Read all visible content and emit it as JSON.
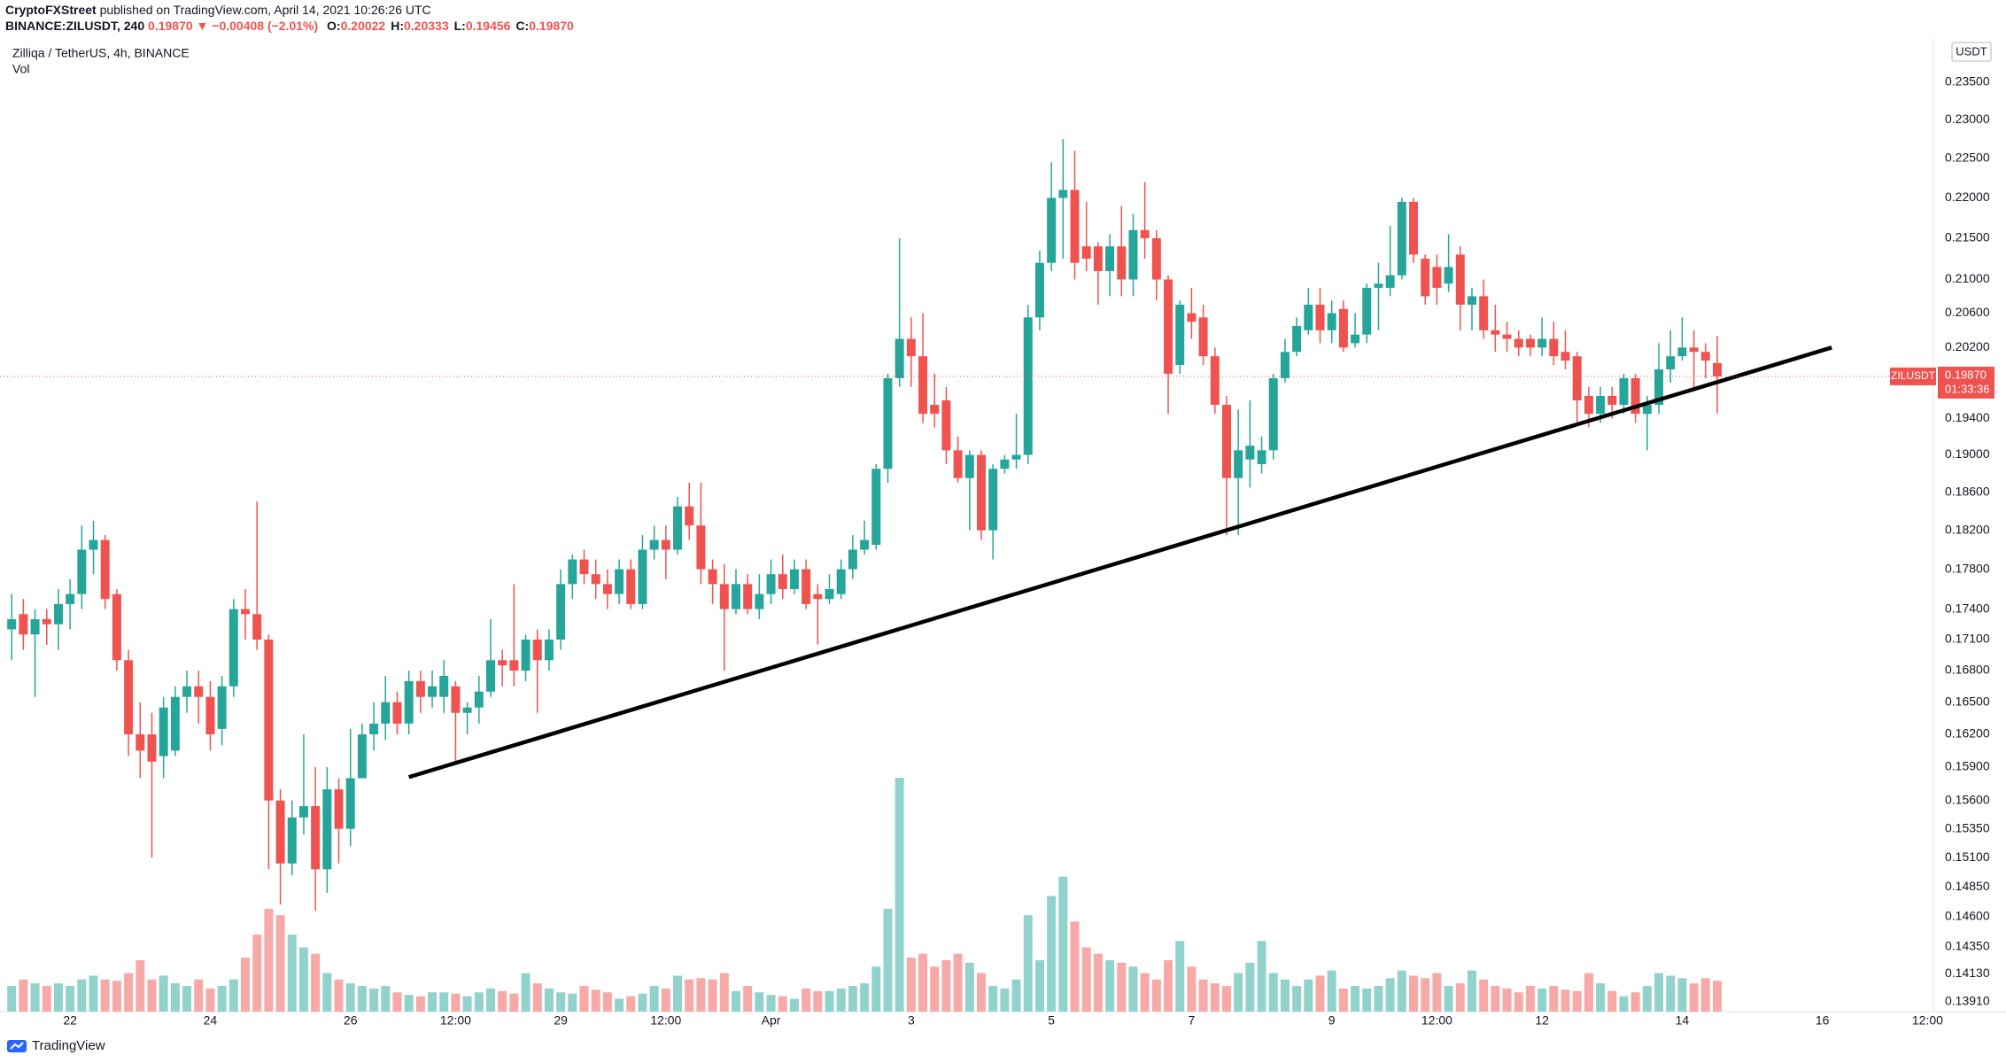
{
  "header": {
    "publisher": "CryptoFXStreet",
    "published": "published on TradingView.com, April 14, 2021 10:26:26 UTC",
    "symbol": "BINANCE:ZILUSDT, 240",
    "last": "0.19870",
    "arrow": "▼",
    "change": "−0.00408 (−2.01%)",
    "ohlc": [
      {
        "key": "O:",
        "value": "0.20022"
      },
      {
        "key": "H:",
        "value": "0.20333"
      },
      {
        "key": "L:",
        "value": "0.19456"
      },
      {
        "key": "C:",
        "value": "0.19870"
      }
    ]
  },
  "chart_data": {
    "type": "candlestick",
    "title": "Zilliqa / TetherUS, 4h, BINANCE",
    "volume_label": "Vol",
    "currency": "USDT",
    "log_scale": true,
    "grid": false,
    "up_color": "#26a69a",
    "down_color": "#ef5350",
    "volume_up_color": "#92d2cc",
    "volume_down_color": "#f7a9a7",
    "open": [
      0.172,
      0.1735,
      0.1715,
      0.173,
      0.1725,
      0.1745,
      0.1755,
      0.18,
      0.181,
      0.1755,
      0.169,
      0.162,
      0.162,
      0.16,
      0.1605,
      0.1655,
      0.1665,
      0.1655,
      0.1625,
      0.1665,
      0.174,
      0.1735,
      0.171,
      0.156,
      0.1505,
      0.1545,
      0.1555,
      0.15,
      0.157,
      0.1535,
      0.158,
      0.162,
      0.163,
      0.165,
      0.163,
      0.167,
      0.1655,
      0.1655,
      0.1665,
      0.164,
      0.1645,
      0.166,
      0.169,
      0.169,
      0.168,
      0.171,
      0.169,
      0.171,
      0.1765,
      0.179,
      0.1775,
      0.1765,
      0.1755,
      0.178,
      0.1745,
      0.18,
      0.181,
      0.18,
      0.1845,
      0.1825,
      0.178,
      0.1765,
      0.174,
      0.1765,
      0.174,
      0.1755,
      0.1775,
      0.176,
      0.178,
      0.1755,
      0.175,
      0.1755,
      0.178,
      0.18,
      0.1805,
      0.1885,
      0.1985,
      0.203,
      0.201,
      0.1955,
      0.196,
      0.1905,
      0.1875,
      0.19,
      0.182,
      0.1885,
      0.1895,
      0.19,
      0.2055,
      0.212,
      0.22,
      0.221,
      0.214,
      0.214,
      0.211,
      0.214,
      0.21,
      0.216,
      0.215,
      0.21,
      0.2,
      0.206,
      0.2055,
      0.201,
      0.1955,
      0.1875,
      0.1895,
      0.189,
      0.1905,
      0.1985,
      0.2015,
      0.204,
      0.207,
      0.204,
      0.2065,
      0.2025,
      0.2035,
      0.209,
      0.209,
      0.2105,
      0.2195,
      0.2125,
      0.2115,
      0.2095,
      0.213,
      0.207,
      0.208,
      0.204,
      0.2035,
      0.203,
      0.203,
      0.202,
      0.203,
      0.2015,
      0.201,
      0.1965,
      0.1945,
      0.1965,
      0.1955,
      0.1985,
      0.1945,
      0.1955,
      0.1995,
      0.201,
      0.202,
      0.2015,
      0.20022
    ],
    "high": [
      0.1755,
      0.175,
      0.174,
      0.174,
      0.176,
      0.177,
      0.1825,
      0.183,
      0.1815,
      0.176,
      0.17,
      0.165,
      0.164,
      0.1655,
      0.1665,
      0.168,
      0.168,
      0.167,
      0.1675,
      0.175,
      0.176,
      0.185,
      0.1715,
      0.157,
      0.156,
      0.162,
      0.159,
      0.159,
      0.158,
      0.1625,
      0.163,
      0.165,
      0.1675,
      0.166,
      0.168,
      0.168,
      0.168,
      0.169,
      0.167,
      0.165,
      0.1675,
      0.173,
      0.17,
      0.1765,
      0.1715,
      0.172,
      0.172,
      0.178,
      0.1795,
      0.18,
      0.179,
      0.178,
      0.179,
      0.179,
      0.1815,
      0.1825,
      0.1825,
      0.1855,
      0.187,
      0.187,
      0.179,
      0.1785,
      0.178,
      0.1775,
      0.1775,
      0.179,
      0.1795,
      0.179,
      0.179,
      0.1765,
      0.1775,
      0.179,
      0.1815,
      0.183,
      0.189,
      0.199,
      0.215,
      0.2055,
      0.206,
      0.199,
      0.1975,
      0.192,
      0.1905,
      0.1905,
      0.189,
      0.19,
      0.1945,
      0.207,
      0.2135,
      0.2245,
      0.2275,
      0.226,
      0.2195,
      0.2145,
      0.2155,
      0.219,
      0.218,
      0.222,
      0.216,
      0.2105,
      0.2075,
      0.209,
      0.207,
      0.202,
      0.1965,
      0.195,
      0.196,
      0.192,
      0.199,
      0.203,
      0.2055,
      0.209,
      0.209,
      0.2075,
      0.2075,
      0.206,
      0.2095,
      0.212,
      0.2165,
      0.22,
      0.22,
      0.213,
      0.213,
      0.2155,
      0.214,
      0.209,
      0.21,
      0.207,
      0.205,
      0.204,
      0.2035,
      0.2055,
      0.205,
      0.204,
      0.2015,
      0.1975,
      0.1975,
      0.1975,
      0.199,
      0.199,
      0.1965,
      0.2025,
      0.204,
      0.2055,
      0.204,
      0.2025,
      0.20333
    ],
    "low": [
      0.169,
      0.17,
      0.1655,
      0.1705,
      0.17,
      0.172,
      0.174,
      0.1775,
      0.174,
      0.168,
      0.16,
      0.158,
      0.151,
      0.158,
      0.16,
      0.164,
      0.163,
      0.1605,
      0.161,
      0.1655,
      0.171,
      0.17,
      0.15,
      0.147,
      0.1495,
      0.153,
      0.1465,
      0.148,
      0.1505,
      0.152,
      0.158,
      0.1605,
      0.1615,
      0.162,
      0.162,
      0.164,
      0.1645,
      0.164,
      0.1595,
      0.162,
      0.163,
      0.1655,
      0.1665,
      0.1665,
      0.167,
      0.164,
      0.168,
      0.17,
      0.175,
      0.1765,
      0.175,
      0.174,
      0.1745,
      0.174,
      0.174,
      0.179,
      0.177,
      0.1795,
      0.181,
      0.1765,
      0.1745,
      0.168,
      0.1735,
      0.1735,
      0.173,
      0.1745,
      0.175,
      0.1755,
      0.174,
      0.1705,
      0.1745,
      0.175,
      0.177,
      0.1795,
      0.18,
      0.187,
      0.1975,
      0.1975,
      0.1935,
      0.193,
      0.189,
      0.187,
      0.182,
      0.181,
      0.179,
      0.188,
      0.1885,
      0.189,
      0.204,
      0.211,
      0.2125,
      0.21,
      0.211,
      0.207,
      0.208,
      0.208,
      0.208,
      0.2125,
      0.2075,
      0.1945,
      0.199,
      0.203,
      0.2,
      0.1945,
      0.1815,
      0.1815,
      0.1865,
      0.188,
      0.1895,
      0.198,
      0.201,
      0.2035,
      0.2025,
      0.2025,
      0.2015,
      0.202,
      0.2025,
      0.204,
      0.208,
      0.21,
      0.212,
      0.207,
      0.207,
      0.2085,
      0.204,
      0.204,
      0.203,
      0.2015,
      0.2015,
      0.201,
      0.201,
      0.201,
      0.2,
      0.1995,
      0.1935,
      0.193,
      0.1935,
      0.194,
      0.1945,
      0.1935,
      0.1905,
      0.1945,
      0.198,
      0.2005,
      0.1975,
      0.1985,
      0.19456
    ],
    "close": [
      0.173,
      0.1715,
      0.173,
      0.1725,
      0.1745,
      0.1755,
      0.18,
      0.181,
      0.175,
      0.169,
      0.162,
      0.1605,
      0.1595,
      0.1645,
      0.1655,
      0.1665,
      0.1655,
      0.162,
      0.1665,
      0.174,
      0.1735,
      0.171,
      0.156,
      0.1505,
      0.1545,
      0.1555,
      0.15,
      0.157,
      0.1535,
      0.158,
      0.162,
      0.163,
      0.165,
      0.163,
      0.167,
      0.1655,
      0.1665,
      0.1675,
      0.164,
      0.1645,
      0.166,
      0.169,
      0.1685,
      0.168,
      0.171,
      0.169,
      0.171,
      0.1765,
      0.179,
      0.1775,
      0.1765,
      0.1755,
      0.178,
      0.1745,
      0.18,
      0.181,
      0.18,
      0.1845,
      0.1825,
      0.178,
      0.1765,
      0.174,
      0.1765,
      0.174,
      0.1755,
      0.1775,
      0.176,
      0.178,
      0.1745,
      0.175,
      0.176,
      0.178,
      0.18,
      0.181,
      0.1885,
      0.1985,
      0.203,
      0.201,
      0.1945,
      0.1945,
      0.1905,
      0.1875,
      0.19,
      0.182,
      0.1885,
      0.1895,
      0.19,
      0.2055,
      0.212,
      0.22,
      0.221,
      0.212,
      0.2125,
      0.211,
      0.214,
      0.21,
      0.216,
      0.215,
      0.21,
      0.199,
      0.207,
      0.205,
      0.201,
      0.1955,
      0.1875,
      0.1905,
      0.191,
      0.1905,
      0.1985,
      0.2015,
      0.2045,
      0.207,
      0.204,
      0.206,
      0.202,
      0.2035,
      0.209,
      0.2095,
      0.2105,
      0.2195,
      0.213,
      0.208,
      0.209,
      0.2115,
      0.207,
      0.208,
      0.204,
      0.2035,
      0.203,
      0.202,
      0.202,
      0.203,
      0.201,
      0.2005,
      0.196,
      0.1945,
      0.1965,
      0.1955,
      0.1985,
      0.1945,
      0.1955,
      0.1995,
      0.201,
      0.202,
      0.2015,
      0.2005,
      0.1987
    ],
    "volume": [
      20,
      25,
      22,
      20,
      22,
      20,
      25,
      28,
      25,
      24,
      30,
      40,
      25,
      28,
      22,
      20,
      25,
      18,
      20,
      25,
      42,
      60,
      80,
      75,
      60,
      50,
      45,
      30,
      25,
      22,
      20,
      18,
      20,
      15,
      13,
      12,
      15,
      15,
      14,
      12,
      15,
      18,
      16,
      14,
      30,
      22,
      18,
      15,
      14,
      20,
      17,
      15,
      10,
      12,
      14,
      20,
      18,
      28,
      25,
      26,
      25,
      30,
      16,
      20,
      15,
      13,
      12,
      10,
      18,
      16,
      16,
      18,
      20,
      22,
      35,
      80,
      182,
      42,
      45,
      35,
      40,
      45,
      38,
      30,
      20,
      18,
      25,
      75,
      40,
      90,
      105,
      70,
      50,
      45,
      40,
      38,
      35,
      30,
      25,
      40,
      55,
      35,
      25,
      22,
      20,
      30,
      38,
      55,
      30,
      25,
      20,
      25,
      28,
      32,
      18,
      20,
      18,
      20,
      26,
      32,
      28,
      26,
      30,
      20,
      22,
      32,
      25,
      20,
      18,
      15,
      20,
      18,
      20,
      17,
      16,
      30,
      22,
      16,
      12,
      15,
      20,
      30,
      28,
      26,
      22,
      26,
      24
    ],
    "xlim": [
      -1,
      164.5
    ],
    "xticks": [
      {
        "value": 5,
        "label": "22"
      },
      {
        "value": 17,
        "label": "24"
      },
      {
        "value": 29,
        "label": "26"
      },
      {
        "value": 38,
        "label": "12:00"
      },
      {
        "value": 47,
        "label": "29"
      },
      {
        "value": 56,
        "label": "12:00"
      },
      {
        "value": 65,
        "label": "Apr"
      },
      {
        "value": 77,
        "label": "3"
      },
      {
        "value": 89,
        "label": "5"
      },
      {
        "value": 101,
        "label": "7"
      },
      {
        "value": 113,
        "label": "9"
      },
      {
        "value": 122,
        "label": "12:00"
      },
      {
        "value": 131,
        "label": "12"
      },
      {
        "value": 143,
        "label": "14"
      },
      {
        "value": 155,
        "label": "16"
      },
      {
        "value": 164,
        "label": "12:00"
      }
    ],
    "ylim": [
      0.1383,
      0.241
    ],
    "yticks": [
      {
        "value": 0.235,
        "label": "0.23500"
      },
      {
        "value": 0.23,
        "label": "0.23000"
      },
      {
        "value": 0.225,
        "label": "0.22500"
      },
      {
        "value": 0.22,
        "label": "0.22000"
      },
      {
        "value": 0.215,
        "label": "0.21500"
      },
      {
        "value": 0.21,
        "label": "0.21000"
      },
      {
        "value": 0.206,
        "label": "0.20600"
      },
      {
        "value": 0.202,
        "label": "0.20200"
      },
      {
        "value": 0.194,
        "label": "0.19400"
      },
      {
        "value": 0.19,
        "label": "0.19000"
      },
      {
        "value": 0.186,
        "label": "0.18600"
      },
      {
        "value": 0.182,
        "label": "0.18200"
      },
      {
        "value": 0.178,
        "label": "0.17800"
      },
      {
        "value": 0.174,
        "label": "0.17400"
      },
      {
        "value": 0.171,
        "label": "0.17100"
      },
      {
        "value": 0.168,
        "label": "0.16800"
      },
      {
        "value": 0.165,
        "label": "0.16500"
      },
      {
        "value": 0.162,
        "label": "0.16200"
      },
      {
        "value": 0.159,
        "label": "0.15900"
      },
      {
        "value": 0.156,
        "label": "0.15600"
      },
      {
        "value": 0.1535,
        "label": "0.15350"
      },
      {
        "value": 0.151,
        "label": "0.15100"
      },
      {
        "value": 0.1485,
        "label": "0.14850"
      },
      {
        "value": 0.146,
        "label": "0.14600"
      },
      {
        "value": 0.1435,
        "label": "0.14350"
      },
      {
        "value": 0.1413,
        "label": "0.14130"
      },
      {
        "value": 0.1391,
        "label": "0.13910"
      }
    ],
    "last_price": {
      "value": 0.1987,
      "label": "0.19870"
    },
    "symbol_label": "ZILUSDT",
    "countdown": "01:33:36",
    "trendline": {
      "x": [
        34,
        155.8
      ],
      "y": [
        0.1581,
        0.202
      ],
      "color": "#000000"
    }
  },
  "footer": {
    "brand": "TradingView"
  }
}
